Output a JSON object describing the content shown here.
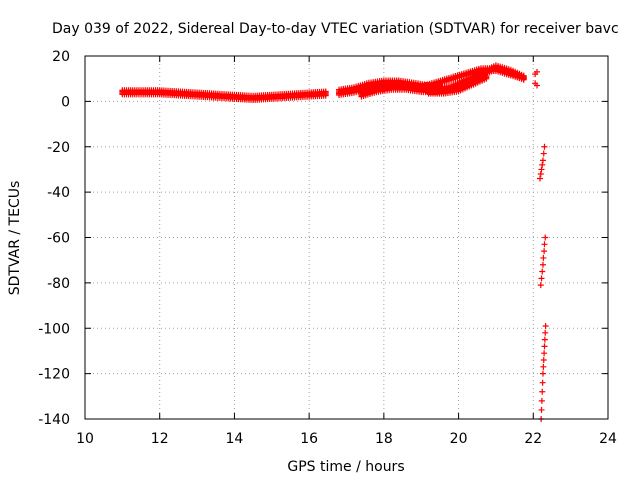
{
  "chart_data": {
    "type": "scatter",
    "title": "Day 039 of 2022, Sidereal Day-to-day VTEC variation (SDTVAR) for receiver bavc",
    "xlabel": "GPS time / hours",
    "ylabel": "SDTVAR / TECUs",
    "xlim": [
      10,
      24
    ],
    "ylim": [
      -140,
      20
    ],
    "x_ticks": [
      10,
      12,
      14,
      16,
      18,
      20,
      22,
      24
    ],
    "y_ticks": [
      20,
      0,
      -20,
      -40,
      -60,
      -80,
      -100,
      -120,
      -140
    ],
    "grid": true,
    "marker": "+",
    "color": "#ff0000",
    "bands": [
      {
        "name": "main-arc-1",
        "x": [
          11.0,
          11.5,
          12.0,
          12.5,
          13.0,
          13.5,
          14.0,
          14.5,
          15.0,
          15.5,
          16.0,
          16.5
        ],
        "y": [
          4,
          4,
          4,
          3.5,
          3,
          2.5,
          2,
          1.5,
          2,
          2.5,
          3,
          3.5
        ],
        "width": 3
      },
      {
        "name": "main-arc-2",
        "x": [
          16.8,
          17.2,
          17.6,
          18.0,
          18.4,
          18.8,
          19.2,
          19.6
        ],
        "y": [
          4,
          5,
          7,
          8,
          8,
          7,
          6,
          5
        ],
        "width": 4
      },
      {
        "name": "main-arc-3",
        "x": [
          17.4,
          17.8,
          18.2,
          18.6,
          19.0,
          19.4,
          19.8,
          20.2,
          20.6,
          21.0,
          21.4,
          21.8
        ],
        "y": [
          3,
          5,
          6,
          6,
          5,
          5,
          6,
          9,
          12,
          15,
          13,
          10
        ],
        "width": 3
      },
      {
        "name": "main-arc-4",
        "x": [
          19.0,
          19.4,
          19.8,
          20.2,
          20.6,
          21.0,
          21.4,
          21.8
        ],
        "y": [
          6,
          8,
          10,
          12,
          14,
          14,
          12,
          10
        ],
        "width": 2
      },
      {
        "name": "main-arc-5",
        "x": [
          19.2,
          19.6,
          20.0,
          20.4,
          20.8
        ],
        "y": [
          4,
          4,
          5,
          8,
          11
        ],
        "width": 2
      }
    ],
    "points": [
      {
        "x": 22.05,
        "y": 12
      },
      {
        "x": 22.1,
        "y": 13
      },
      {
        "x": 22.05,
        "y": 8
      },
      {
        "x": 22.1,
        "y": 7
      },
      {
        "x": 22.3,
        "y": -20
      },
      {
        "x": 22.28,
        "y": -23
      },
      {
        "x": 22.26,
        "y": -26
      },
      {
        "x": 22.24,
        "y": -28
      },
      {
        "x": 22.22,
        "y": -30
      },
      {
        "x": 22.2,
        "y": -32
      },
      {
        "x": 22.18,
        "y": -34
      },
      {
        "x": 22.32,
        "y": -60
      },
      {
        "x": 22.3,
        "y": -63
      },
      {
        "x": 22.29,
        "y": -66
      },
      {
        "x": 22.27,
        "y": -69
      },
      {
        "x": 22.26,
        "y": -72
      },
      {
        "x": 22.24,
        "y": -75
      },
      {
        "x": 22.22,
        "y": -78
      },
      {
        "x": 22.2,
        "y": -81
      },
      {
        "x": 22.33,
        "y": -99
      },
      {
        "x": 22.32,
        "y": -102
      },
      {
        "x": 22.31,
        "y": -105
      },
      {
        "x": 22.3,
        "y": -108
      },
      {
        "x": 22.29,
        "y": -111
      },
      {
        "x": 22.28,
        "y": -114
      },
      {
        "x": 22.27,
        "y": -117
      },
      {
        "x": 22.26,
        "y": -120
      },
      {
        "x": 22.25,
        "y": -124
      },
      {
        "x": 22.24,
        "y": -128
      },
      {
        "x": 22.23,
        "y": -132
      },
      {
        "x": 22.22,
        "y": -136
      },
      {
        "x": 22.21,
        "y": -140
      }
    ]
  }
}
